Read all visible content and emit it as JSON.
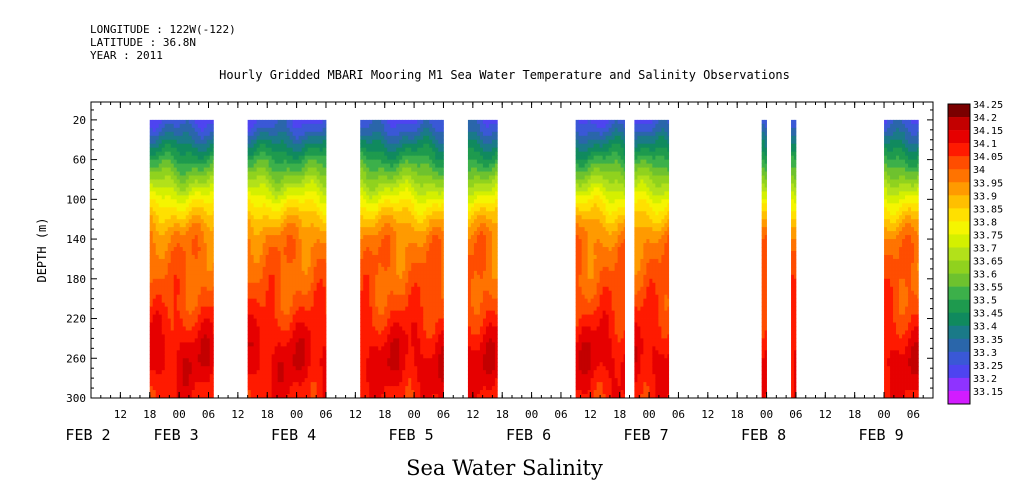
{
  "header": {
    "longitude": "LONGITUDE : 122W(-122)",
    "latitude": "LATITUDE : 36.8N",
    "year": "YEAR : 2011"
  },
  "chart_data": {
    "type": "heatmap",
    "title": "Hourly Gridded MBARI Mooring M1 Sea Water Temperature and Salinity Observations",
    "subtitle": "Sea Water Salinity",
    "ylabel": "DEPTH (m)",
    "xlabel": "",
    "x_range_hours_from_feb2_00": [
      6,
      178
    ],
    "ylim": [
      300,
      0
    ],
    "y_ticks": [
      20,
      60,
      100,
      140,
      180,
      220,
      260,
      300
    ],
    "x_hour_ticks": [
      {
        "h": 12,
        "label": "12"
      },
      {
        "h": 18,
        "label": "18"
      },
      {
        "h": 24,
        "label": "00"
      },
      {
        "h": 30,
        "label": "06"
      },
      {
        "h": 36,
        "label": "12"
      },
      {
        "h": 42,
        "label": "18"
      },
      {
        "h": 48,
        "label": "00"
      },
      {
        "h": 54,
        "label": "06"
      },
      {
        "h": 60,
        "label": "12"
      },
      {
        "h": 66,
        "label": "18"
      },
      {
        "h": 72,
        "label": "00"
      },
      {
        "h": 78,
        "label": "06"
      },
      {
        "h": 84,
        "label": "12"
      },
      {
        "h": 90,
        "label": "18"
      },
      {
        "h": 96,
        "label": "00"
      },
      {
        "h": 102,
        "label": "06"
      },
      {
        "h": 108,
        "label": "12"
      },
      {
        "h": 114,
        "label": "18"
      },
      {
        "h": 120,
        "label": "00"
      },
      {
        "h": 126,
        "label": "06"
      },
      {
        "h": 132,
        "label": "12"
      },
      {
        "h": 138,
        "label": "18"
      },
      {
        "h": 144,
        "label": "00"
      },
      {
        "h": 150,
        "label": "06"
      },
      {
        "h": 156,
        "label": "12"
      },
      {
        "h": 162,
        "label": "18"
      },
      {
        "h": 168,
        "label": "00"
      },
      {
        "h": 174,
        "label": "06"
      }
    ],
    "day_labels": [
      {
        "label": "FEB  2",
        "h": 6
      },
      {
        "label": "FEB  3",
        "h": 24
      },
      {
        "label": "FEB  4",
        "h": 48
      },
      {
        "label": "FEB  5",
        "h": 72
      },
      {
        "label": "FEB  6",
        "h": 96
      },
      {
        "label": "FEB  7",
        "h": 120
      },
      {
        "label": "FEB  8",
        "h": 144
      },
      {
        "label": "FEB  9",
        "h": 168
      }
    ],
    "color_levels": [
      33.15,
      33.2,
      33.25,
      33.3,
      33.35,
      33.4,
      33.45,
      33.5,
      33.55,
      33.6,
      33.65,
      33.7,
      33.75,
      33.8,
      33.85,
      33.9,
      33.95,
      34.0,
      34.05,
      34.1,
      34.15,
      34.2,
      34.25
    ],
    "legend_labels": [
      "34.25",
      "34.2",
      "34.15",
      "34.1",
      "34.05",
      "34",
      "33.95",
      "33.9",
      "33.85",
      "33.8",
      "33.75",
      "33.7",
      "33.65",
      "33.6",
      "33.55",
      "33.5",
      "33.45",
      "33.4",
      "33.35",
      "33.3",
      "33.25",
      "33.2",
      "33.15"
    ],
    "legend_colors": [
      "#7a0000",
      "#c30000",
      "#e60000",
      "#ff1a00",
      "#ff4d00",
      "#ff7300",
      "#ff9a00",
      "#ffbf00",
      "#ffe000",
      "#f5f500",
      "#d4f000",
      "#b2e11a",
      "#90d21e",
      "#6ec22e",
      "#3cb04a",
      "#1e9a4e",
      "#108a5e",
      "#1a7a88",
      "#2a66aa",
      "#3a58d6",
      "#4e44f0",
      "#8f33ff",
      "#d21cff"
    ],
    "profile": [
      {
        "depth": 20,
        "value": 33.3
      },
      {
        "depth": 30,
        "value": 33.35
      },
      {
        "depth": 45,
        "value": 33.45
      },
      {
        "depth": 60,
        "value": 33.55
      },
      {
        "depth": 75,
        "value": 33.65
      },
      {
        "depth": 90,
        "value": 33.75
      },
      {
        "depth": 105,
        "value": 33.85
      },
      {
        "depth": 120,
        "value": 33.93
      },
      {
        "depth": 135,
        "value": 34.0
      },
      {
        "depth": 150,
        "value": 34.03
      },
      {
        "depth": 180,
        "value": 34.05
      },
      {
        "depth": 205,
        "value": 34.08
      },
      {
        "depth": 225,
        "value": 34.12
      },
      {
        "depth": 245,
        "value": 34.16
      },
      {
        "depth": 265,
        "value": 34.18
      },
      {
        "depth": 285,
        "value": 34.15
      },
      {
        "depth": 300,
        "value": 34.13
      }
    ],
    "data_segments": [
      {
        "start": 18,
        "end": 31
      },
      {
        "start": 38,
        "end": 54
      },
      {
        "start": 61,
        "end": 78
      },
      {
        "start": 83,
        "end": 89
      },
      {
        "start": 105,
        "end": 115
      },
      {
        "start": 117,
        "end": 124
      },
      {
        "start": 143,
        "end": 144
      },
      {
        "start": 149,
        "end": 150
      },
      {
        "start": 168,
        "end": 175
      }
    ]
  }
}
